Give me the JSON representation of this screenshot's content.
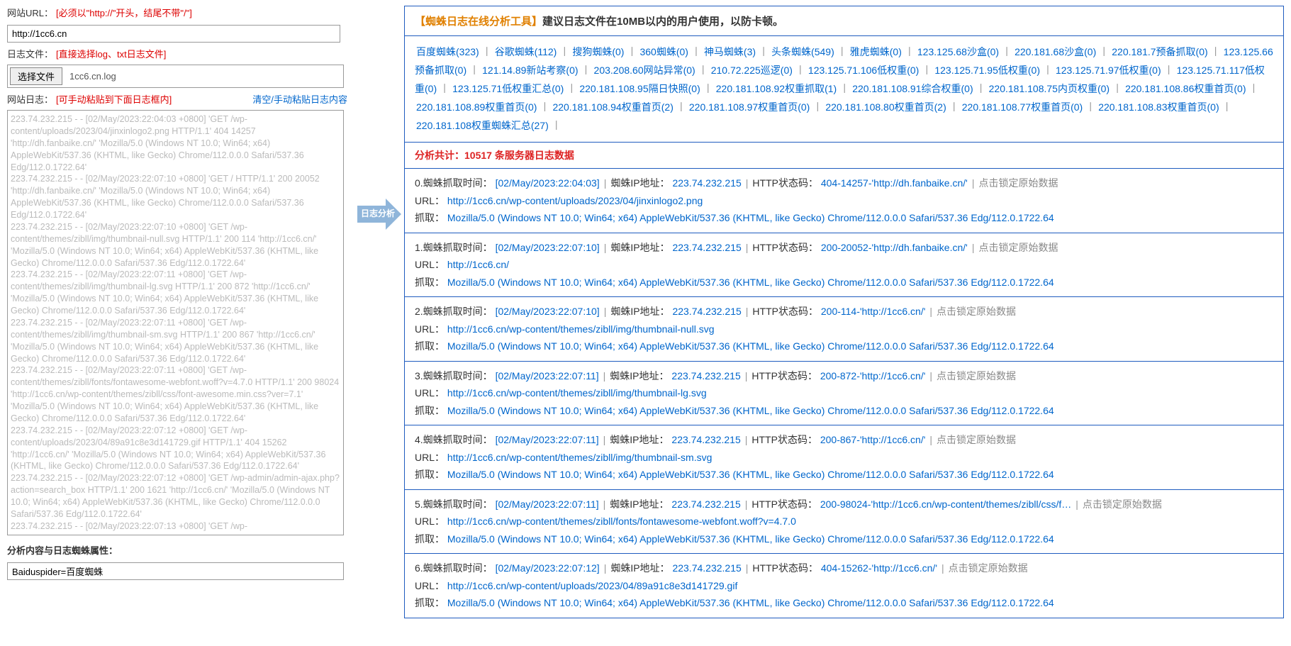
{
  "form": {
    "url_label": "网站URL：",
    "url_hint": "[必须以\"http://\"开头，结尾不带\"/\"]",
    "url_value": "http://1cc6.cn",
    "file_label": "日志文件：",
    "file_hint": "[直接选择log、txt日志文件]",
    "file_btn": "选择文件",
    "file_name": "1cc6.cn.log",
    "log_label": "网站日志：",
    "log_hint": "[可手动粘贴到下面日志框内]",
    "clear_link": "清空/手动粘贴日志内容",
    "log_text": "223.74.232.215 - - [02/May/2023:22:04:03 +0800] 'GET /wp-content/uploads/2023/04/jinxinlogo2.png HTTP/1.1' 404 14257 'http://dh.fanbaike.cn/' 'Mozilla/5.0 (Windows NT 10.0; Win64; x64) AppleWebKit/537.36 (KHTML, like Gecko) Chrome/112.0.0.0 Safari/537.36 Edg/112.0.1722.64'\n223.74.232.215 - - [02/May/2023:22:07:10 +0800] 'GET / HTTP/1.1' 200 20052 'http://dh.fanbaike.cn/' 'Mozilla/5.0 (Windows NT 10.0; Win64; x64) AppleWebKit/537.36 (KHTML, like Gecko) Chrome/112.0.0.0 Safari/537.36 Edg/112.0.1722.64'\n223.74.232.215 - - [02/May/2023:22:07:10 +0800] 'GET /wp-content/themes/zibll/img/thumbnail-null.svg HTTP/1.1' 200 114 'http://1cc6.cn/' 'Mozilla/5.0 (Windows NT 10.0; Win64; x64) AppleWebKit/537.36 (KHTML, like Gecko) Chrome/112.0.0.0 Safari/537.36 Edg/112.0.1722.64'\n223.74.232.215 - - [02/May/2023:22:07:11 +0800] 'GET /wp-content/themes/zibll/img/thumbnail-lg.svg HTTP/1.1' 200 872 'http://1cc6.cn/' 'Mozilla/5.0 (Windows NT 10.0; Win64; x64) AppleWebKit/537.36 (KHTML, like Gecko) Chrome/112.0.0.0 Safari/537.36 Edg/112.0.1722.64'\n223.74.232.215 - - [02/May/2023:22:07:11 +0800] 'GET /wp-content/themes/zibll/img/thumbnail-sm.svg HTTP/1.1' 200 867 'http://1cc6.cn/' 'Mozilla/5.0 (Windows NT 10.0; Win64; x64) AppleWebKit/537.36 (KHTML, like Gecko) Chrome/112.0.0.0 Safari/537.36 Edg/112.0.1722.64'\n223.74.232.215 - - [02/May/2023:22:07:11 +0800] 'GET /wp-content/themes/zibll/fonts/fontawesome-webfont.woff?v=4.7.0 HTTP/1.1' 200 98024 'http://1cc6.cn/wp-content/themes/zibll/css/font-awesome.min.css?ver=7.1' 'Mozilla/5.0 (Windows NT 10.0; Win64; x64) AppleWebKit/537.36 (KHTML, like Gecko) Chrome/112.0.0.0 Safari/537.36 Edg/112.0.1722.64'\n223.74.232.215 - - [02/May/2023:22:07:12 +0800] 'GET /wp-content/uploads/2023/04/89a91c8e3d141729.gif HTTP/1.1' 404 15262 'http://1cc6.cn/' 'Mozilla/5.0 (Windows NT 10.0; Win64; x64) AppleWebKit/537.36 (KHTML, like Gecko) Chrome/112.0.0.0 Safari/537.36 Edg/112.0.1722.64'\n223.74.232.215 - - [02/May/2023:22:07:12 +0800] 'GET /wp-admin/admin-ajax.php?action=search_box HTTP/1.1' 200 1621 'http://1cc6.cn/' 'Mozilla/5.0 (Windows NT 10.0; Win64; x64) AppleWebKit/537.36 (KHTML, like Gecko) Chrome/112.0.0.0 Safari/537.36 Edg/112.0.1722.64'\n223.74.232.215 - - [02/May/2023:22:07:13 +0800] 'GET /wp-",
    "attr_label": "分析内容与日志蜘蛛属性：",
    "attr_value": "Baiduspider=百度蜘蛛"
  },
  "arrow": {
    "label": "日志分析"
  },
  "notice": {
    "orange": "【蜘蛛日志在线分析工具】",
    "rest": "建议日志文件在10MB以内的用户使用，以防卡顿。"
  },
  "spiders": [
    "百度蜘蛛(323)",
    "谷歌蜘蛛(112)",
    "搜狗蜘蛛(0)",
    "360蜘蛛(0)",
    "神马蜘蛛(3)",
    "头条蜘蛛(549)",
    "雅虎蜘蛛(0)",
    "123.125.68沙盒(0)",
    "220.181.68沙盒(0)",
    "220.181.7预备抓取(0)",
    "123.125.66预备抓取(0)",
    "121.14.89新站考察(0)",
    "203.208.60网站异常(0)",
    "210.72.225巡逻(0)",
    "123.125.71.106低权重(0)",
    "123.125.71.95低权重(0)",
    "123.125.71.97低权重(0)",
    "123.125.71.117低权重(0)",
    "123.125.71低权重汇总(0)",
    "220.181.108.95隔日快照(0)",
    "220.181.108.92权重抓取(1)",
    "220.181.108.91综合权重(0)",
    "220.181.108.75内页权重(0)",
    "220.181.108.86权重首页(0)",
    "220.181.108.89权重首页(0)",
    "220.181.108.94权重首页(2)",
    "220.181.108.97权重首页(0)",
    "220.181.108.80权重首页(2)",
    "220.181.108.77权重首页(0)",
    "220.181.108.83权重首页(0)",
    "220.181.108权重蜘蛛汇总(27)"
  ],
  "summary": "分析共计：10517 条服务器日志数据",
  "labels": {
    "time": "蜘蛛抓取时间：",
    "ip": "蜘蛛IP地址：",
    "status": "HTTP状态码：",
    "url": "URL：",
    "agent": "抓取：",
    "lock": "点击锁定原始数据"
  },
  "entries": [
    {
      "idx": "0.",
      "time": "[02/May/2023:22:04:03]",
      "ip": "223.74.232.215",
      "status": "404-14257-'http://dh.fanbaike.cn/'",
      "url": "http://1cc6.cn/wp-content/uploads/2023/04/jinxinlogo2.png",
      "agent": "Mozilla/5.0 (Windows NT 10.0; Win64; x64) AppleWebKit/537.36 (KHTML, like Gecko) Chrome/112.0.0.0 Safari/537.36 Edg/112.0.1722.64"
    },
    {
      "idx": "1.",
      "time": "[02/May/2023:22:07:10]",
      "ip": "223.74.232.215",
      "status": "200-20052-'http://dh.fanbaike.cn/'",
      "url": "http://1cc6.cn/",
      "agent": "Mozilla/5.0 (Windows NT 10.0; Win64; x64) AppleWebKit/537.36 (KHTML, like Gecko) Chrome/112.0.0.0 Safari/537.36 Edg/112.0.1722.64"
    },
    {
      "idx": "2.",
      "time": "[02/May/2023:22:07:10]",
      "ip": "223.74.232.215",
      "status": "200-114-'http://1cc6.cn/'",
      "url": "http://1cc6.cn/wp-content/themes/zibll/img/thumbnail-null.svg",
      "agent": "Mozilla/5.0 (Windows NT 10.0; Win64; x64) AppleWebKit/537.36 (KHTML, like Gecko) Chrome/112.0.0.0 Safari/537.36 Edg/112.0.1722.64"
    },
    {
      "idx": "3.",
      "time": "[02/May/2023:22:07:11]",
      "ip": "223.74.232.215",
      "status": "200-872-'http://1cc6.cn/'",
      "url": "http://1cc6.cn/wp-content/themes/zibll/img/thumbnail-lg.svg",
      "agent": "Mozilla/5.0 (Windows NT 10.0; Win64; x64) AppleWebKit/537.36 (KHTML, like Gecko) Chrome/112.0.0.0 Safari/537.36 Edg/112.0.1722.64"
    },
    {
      "idx": "4.",
      "time": "[02/May/2023:22:07:11]",
      "ip": "223.74.232.215",
      "status": "200-867-'http://1cc6.cn/'",
      "url": "http://1cc6.cn/wp-content/themes/zibll/img/thumbnail-sm.svg",
      "agent": "Mozilla/5.0 (Windows NT 10.0; Win64; x64) AppleWebKit/537.36 (KHTML, like Gecko) Chrome/112.0.0.0 Safari/537.36 Edg/112.0.1722.64"
    },
    {
      "idx": "5.",
      "time": "[02/May/2023:22:07:11]",
      "ip": "223.74.232.215",
      "status": "200-98024-'http://1cc6.cn/wp-content/themes/zibll/css/f…",
      "url": "http://1cc6.cn/wp-content/themes/zibll/fonts/fontawesome-webfont.woff?v=4.7.0",
      "agent": "Mozilla/5.0 (Windows NT 10.0; Win64; x64) AppleWebKit/537.36 (KHTML, like Gecko) Chrome/112.0.0.0 Safari/537.36 Edg/112.0.1722.64"
    },
    {
      "idx": "6.",
      "time": "[02/May/2023:22:07:12]",
      "ip": "223.74.232.215",
      "status": "404-15262-'http://1cc6.cn/'",
      "url": "http://1cc6.cn/wp-content/uploads/2023/04/89a91c8e3d141729.gif",
      "agent": "Mozilla/5.0 (Windows NT 10.0; Win64; x64) AppleWebKit/537.36 (KHTML, like Gecko) Chrome/112.0.0.0 Safari/537.36 Edg/112.0.1722.64"
    }
  ]
}
